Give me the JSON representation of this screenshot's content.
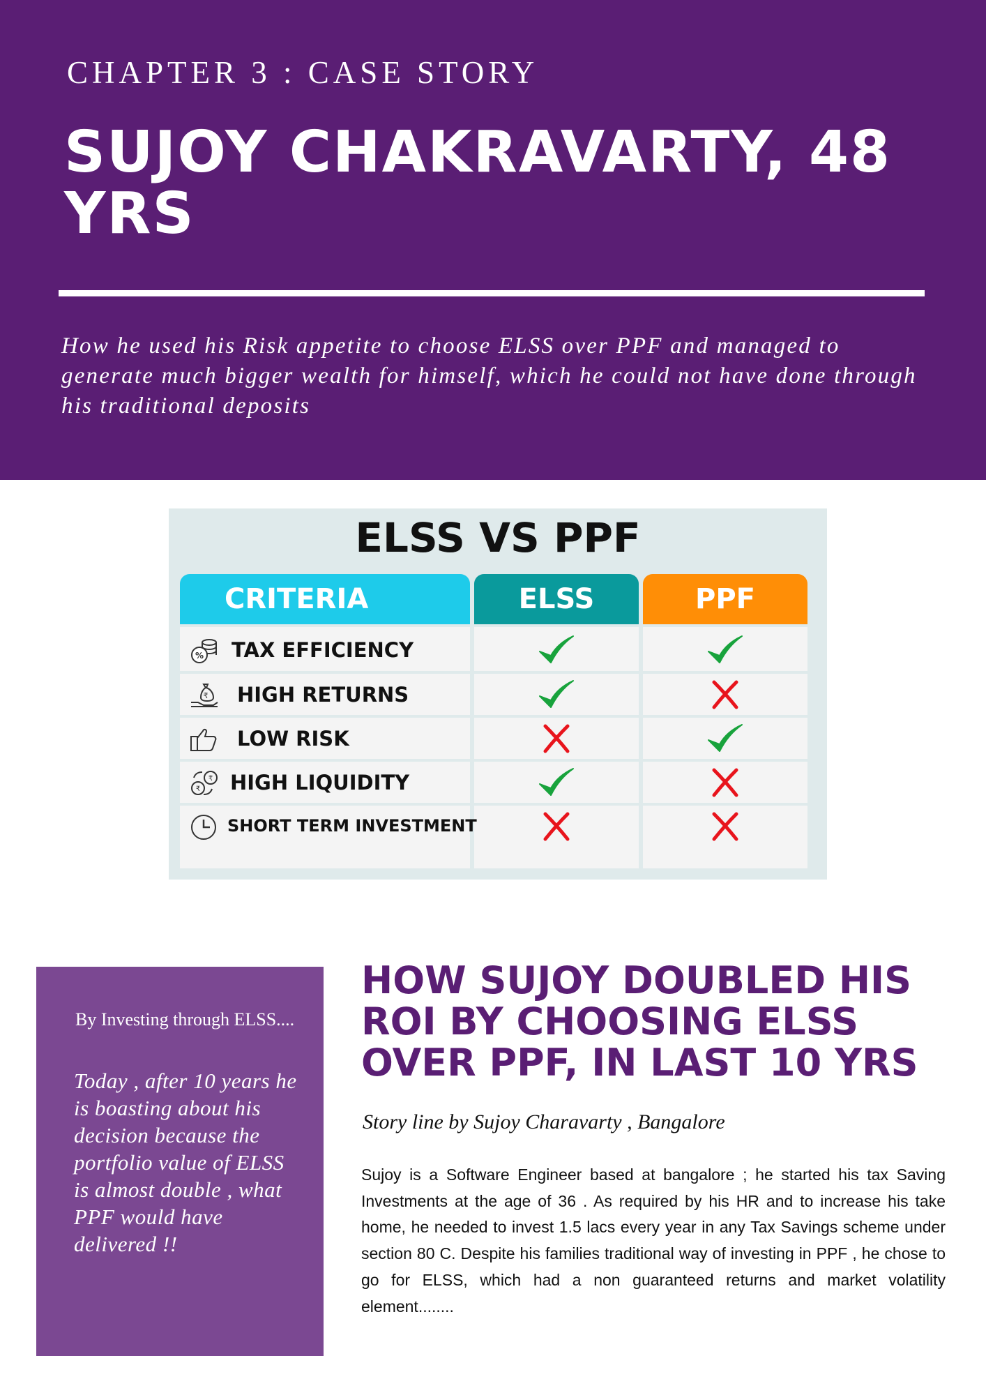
{
  "header": {
    "chapter": "CHAPTER 3 : CASE STORY",
    "title": "SUJOY CHAKRAVARTY, 48 YRS",
    "subtitle": "How he used his Risk appetite to choose ELSS over PPF and managed to generate much bigger wealth for himself, which he could not have done through his traditional deposits"
  },
  "comparison": {
    "title": "ELSS VS PPF",
    "headers": {
      "criteria": "CRITERIA",
      "elss": "ELSS",
      "ppf": "PPF"
    },
    "rows": [
      {
        "label": "TAX EFFICIENCY",
        "icon": "coins-percent-icon",
        "elss": "yes",
        "ppf": "yes"
      },
      {
        "label": "HIGH RETURNS",
        "icon": "money-bag-hand-icon",
        "elss": "yes",
        "ppf": "no"
      },
      {
        "label": "LOW RISK",
        "icon": "thumbs-up-icon",
        "elss": "no",
        "ppf": "yes"
      },
      {
        "label": "HIGH LIQUIDITY",
        "icon": "currency-exchange-icon",
        "elss": "yes",
        "ppf": "no"
      },
      {
        "label": "SHORT TERM INVESTMENT",
        "icon": "clock-icon",
        "elss": "no",
        "ppf": "no"
      }
    ],
    "colors": {
      "criteria_header": "#1ecbea",
      "elss_header": "#0a9a9c",
      "ppf_header": "#ff8e06",
      "check": "#18a33c",
      "cross": "#e8141c"
    }
  },
  "sidebar": {
    "lead": "By Investing through ELSS....",
    "quote": "Today , after 10 years he is boasting about his decision because the portfolio value of ELSS is almost double , what PPF would have delivered !!"
  },
  "article": {
    "headline": "HOW SUJOY DOUBLED HIS ROI BY CHOOSING ELSS OVER PPF, IN LAST 10 YRS",
    "byline": "Story line by Sujoy Charavarty , Bangalore",
    "body": "Sujoy is a Software Engineer based at bangalore ; he started his tax Saving Investments at the age of 36 . As required by his HR and to increase his take home, he needed to invest 1.5 lacs every year in any Tax Savings scheme under section 80 C. Despite his families traditional way of investing in PPF , he chose to go for ELSS, which had a non guaranteed returns and market volatility element........"
  },
  "colors": {
    "primary": "#5a1e74",
    "sidebar": "#7b4892"
  }
}
